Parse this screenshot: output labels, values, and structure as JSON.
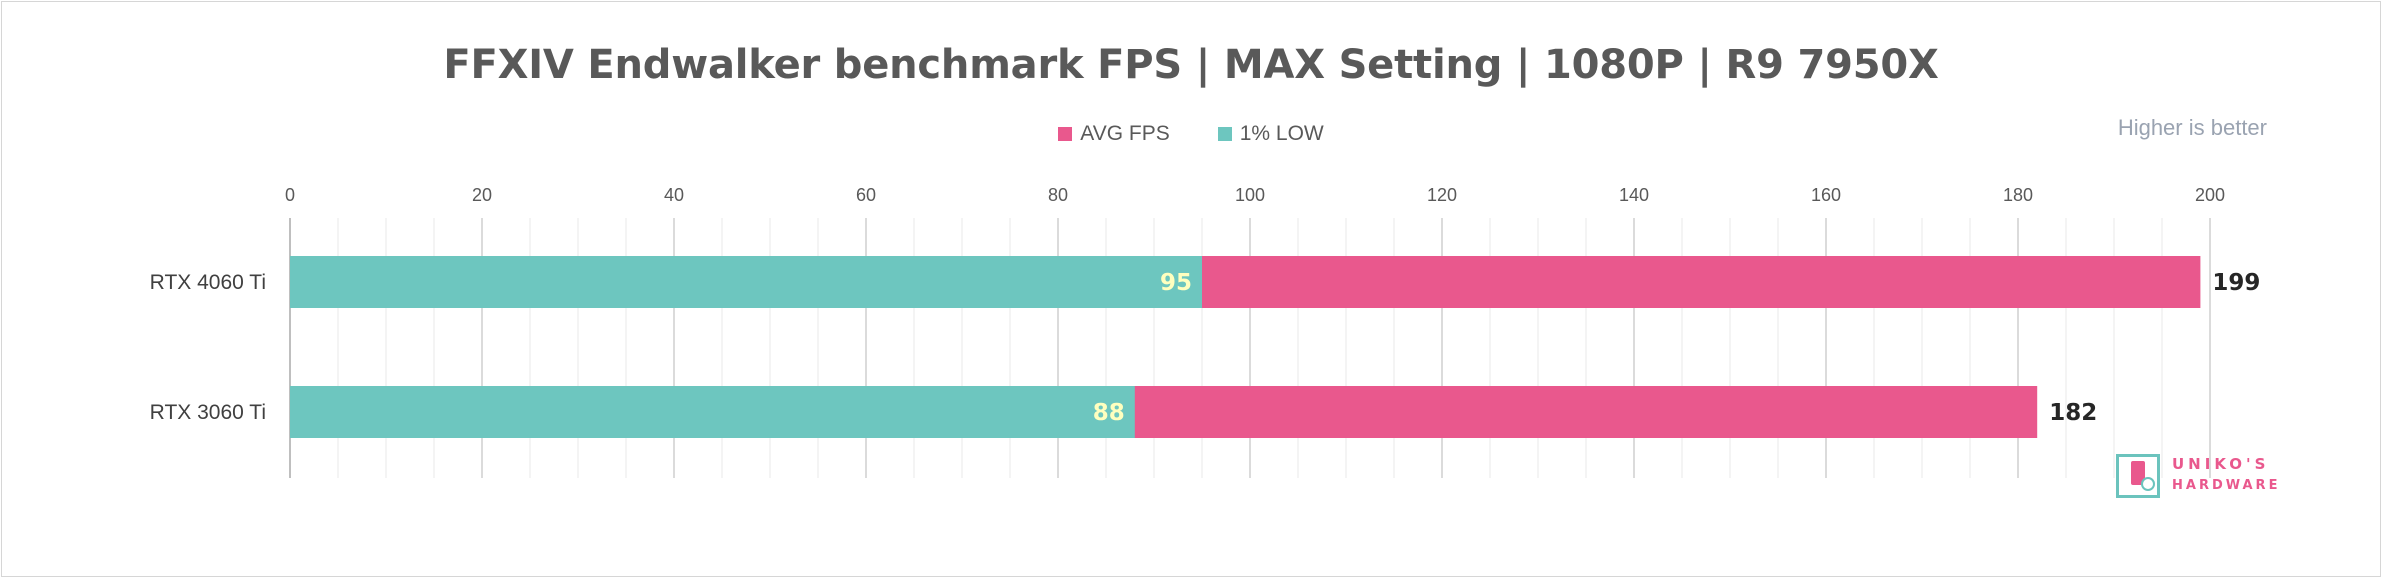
{
  "chart_data": {
    "type": "bar",
    "orientation": "horizontal",
    "stacked": false,
    "overlapped": true,
    "title": "FFXIV Endwalker benchmark FPS | MAX Setting | 1080P | R9 7950X",
    "note": "Higher is better",
    "categories": [
      "RTX 4060 Ti",
      "RTX 3060 Ti"
    ],
    "series": [
      {
        "name": "AVG FPS",
        "color": "#e9588d",
        "values": [
          199,
          182
        ]
      },
      {
        "name": "1% LOW",
        "color": "#6dc6bf",
        "values": [
          95,
          88
        ]
      }
    ],
    "xlim": [
      0,
      200
    ],
    "xticks": [
      0,
      20,
      40,
      60,
      80,
      100,
      120,
      140,
      160,
      180,
      200
    ],
    "axis_position": "top",
    "grid": true,
    "legend": "top-center"
  },
  "logo": {
    "line1": "UNIKO'S",
    "line2": "HARDWARE",
    "colors": {
      "primary": "#e9588d",
      "secondary": "#6bc3bd"
    }
  }
}
